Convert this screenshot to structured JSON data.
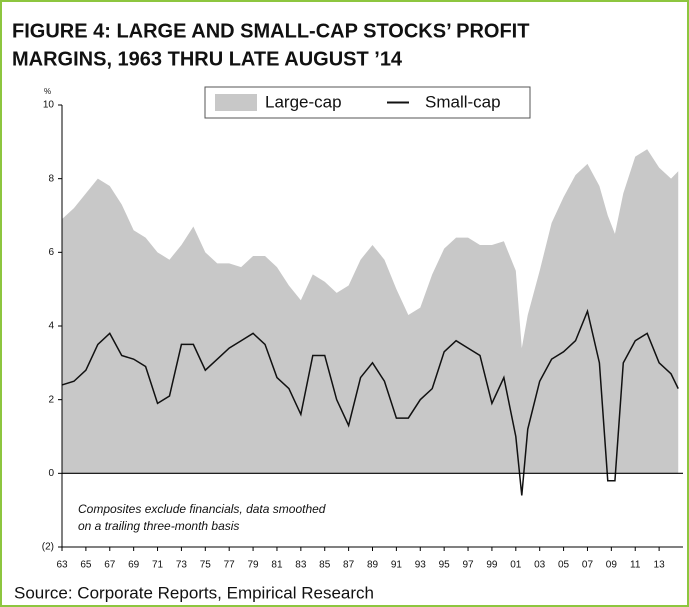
{
  "chart_data": {
    "type": "area_line",
    "title": [
      "FIGURE 4: LARGE AND SMALL-CAP STOCKS’ PROFIT",
      "MARGINS, 1963 THRU LATE AUGUST ’14"
    ],
    "y_label": "%",
    "annotation": [
      "Composites exclude financials, data smoothed",
      "on a trailing three-month basis"
    ],
    "source": "Source: Corporate Reports, Empirical Research",
    "x": [
      1963,
      1964,
      1965,
      1966,
      1967,
      1968,
      1969,
      1970,
      1971,
      1972,
      1973,
      1974,
      1975,
      1976,
      1977,
      1978,
      1979,
      1980,
      1981,
      1982,
      1983,
      1984,
      1985,
      1986,
      1987,
      1988,
      1989,
      1990,
      1991,
      1992,
      1993,
      1994,
      1995,
      1996,
      1997,
      1998,
      1999,
      2000,
      2001,
      2001.5,
      2002,
      2003,
      2004,
      2005,
      2006,
      2007,
      2008,
      2008.7,
      2009.3,
      2010,
      2011,
      2012,
      2013,
      2014,
      2014.6
    ],
    "series": [
      {
        "name": "Large-cap",
        "kind": "area",
        "color": "#c8c8c8",
        "values": [
          6.9,
          7.2,
          7.6,
          8.0,
          7.8,
          7.3,
          6.6,
          6.4,
          6.0,
          5.8,
          6.2,
          6.7,
          6.0,
          5.7,
          5.7,
          5.6,
          5.9,
          5.9,
          5.6,
          5.1,
          4.7,
          5.4,
          5.2,
          4.9,
          5.1,
          5.8,
          6.2,
          5.8,
          5.0,
          4.3,
          4.5,
          5.4,
          6.1,
          6.4,
          6.4,
          6.2,
          6.2,
          6.3,
          5.5,
          3.4,
          4.3,
          5.5,
          6.8,
          7.5,
          8.1,
          8.4,
          7.8,
          7.0,
          6.5,
          7.6,
          8.6,
          8.8,
          8.3,
          8.0,
          8.2
        ]
      },
      {
        "name": "Small-cap",
        "kind": "line",
        "color": "#111111",
        "values": [
          2.4,
          2.5,
          2.8,
          3.5,
          3.8,
          3.2,
          3.1,
          2.9,
          1.9,
          2.1,
          3.5,
          3.5,
          2.8,
          3.1,
          3.4,
          3.6,
          3.8,
          3.5,
          2.6,
          2.3,
          1.6,
          3.2,
          3.2,
          2.0,
          1.3,
          2.6,
          3.0,
          2.5,
          1.5,
          1.5,
          2.0,
          2.3,
          3.3,
          3.6,
          3.4,
          3.2,
          1.9,
          2.6,
          1.0,
          -0.6,
          1.2,
          2.5,
          3.1,
          3.3,
          3.6,
          4.4,
          3.0,
          -0.2,
          -0.2,
          3.0,
          3.6,
          3.8,
          3.0,
          2.7,
          2.3
        ]
      }
    ],
    "xlim": [
      1963,
      2015
    ],
    "xticks": [
      {
        "value": 1963,
        "label": "63"
      },
      {
        "value": 1965,
        "label": "65"
      },
      {
        "value": 1967,
        "label": "67"
      },
      {
        "value": 1969,
        "label": "69"
      },
      {
        "value": 1971,
        "label": "71"
      },
      {
        "value": 1973,
        "label": "73"
      },
      {
        "value": 1975,
        "label": "75"
      },
      {
        "value": 1977,
        "label": "77"
      },
      {
        "value": 1979,
        "label": "79"
      },
      {
        "value": 1981,
        "label": "81"
      },
      {
        "value": 1983,
        "label": "83"
      },
      {
        "value": 1985,
        "label": "85"
      },
      {
        "value": 1987,
        "label": "87"
      },
      {
        "value": 1989,
        "label": "89"
      },
      {
        "value": 1991,
        "label": "91"
      },
      {
        "value": 1993,
        "label": "93"
      },
      {
        "value": 1995,
        "label": "95"
      },
      {
        "value": 1997,
        "label": "97"
      },
      {
        "value": 1999,
        "label": "99"
      },
      {
        "value": 2001,
        "label": "01"
      },
      {
        "value": 2003,
        "label": "03"
      },
      {
        "value": 2005,
        "label": "05"
      },
      {
        "value": 2007,
        "label": "07"
      },
      {
        "value": 2009,
        "label": "09"
      },
      {
        "value": 2011,
        "label": "11"
      },
      {
        "value": 2013,
        "label": "13"
      }
    ],
    "ylim": [
      -2,
      10
    ],
    "yticks": [
      {
        "value": -2,
        "label": "(2)"
      },
      0,
      2,
      4,
      6,
      8,
      10
    ],
    "legend": "top"
  }
}
